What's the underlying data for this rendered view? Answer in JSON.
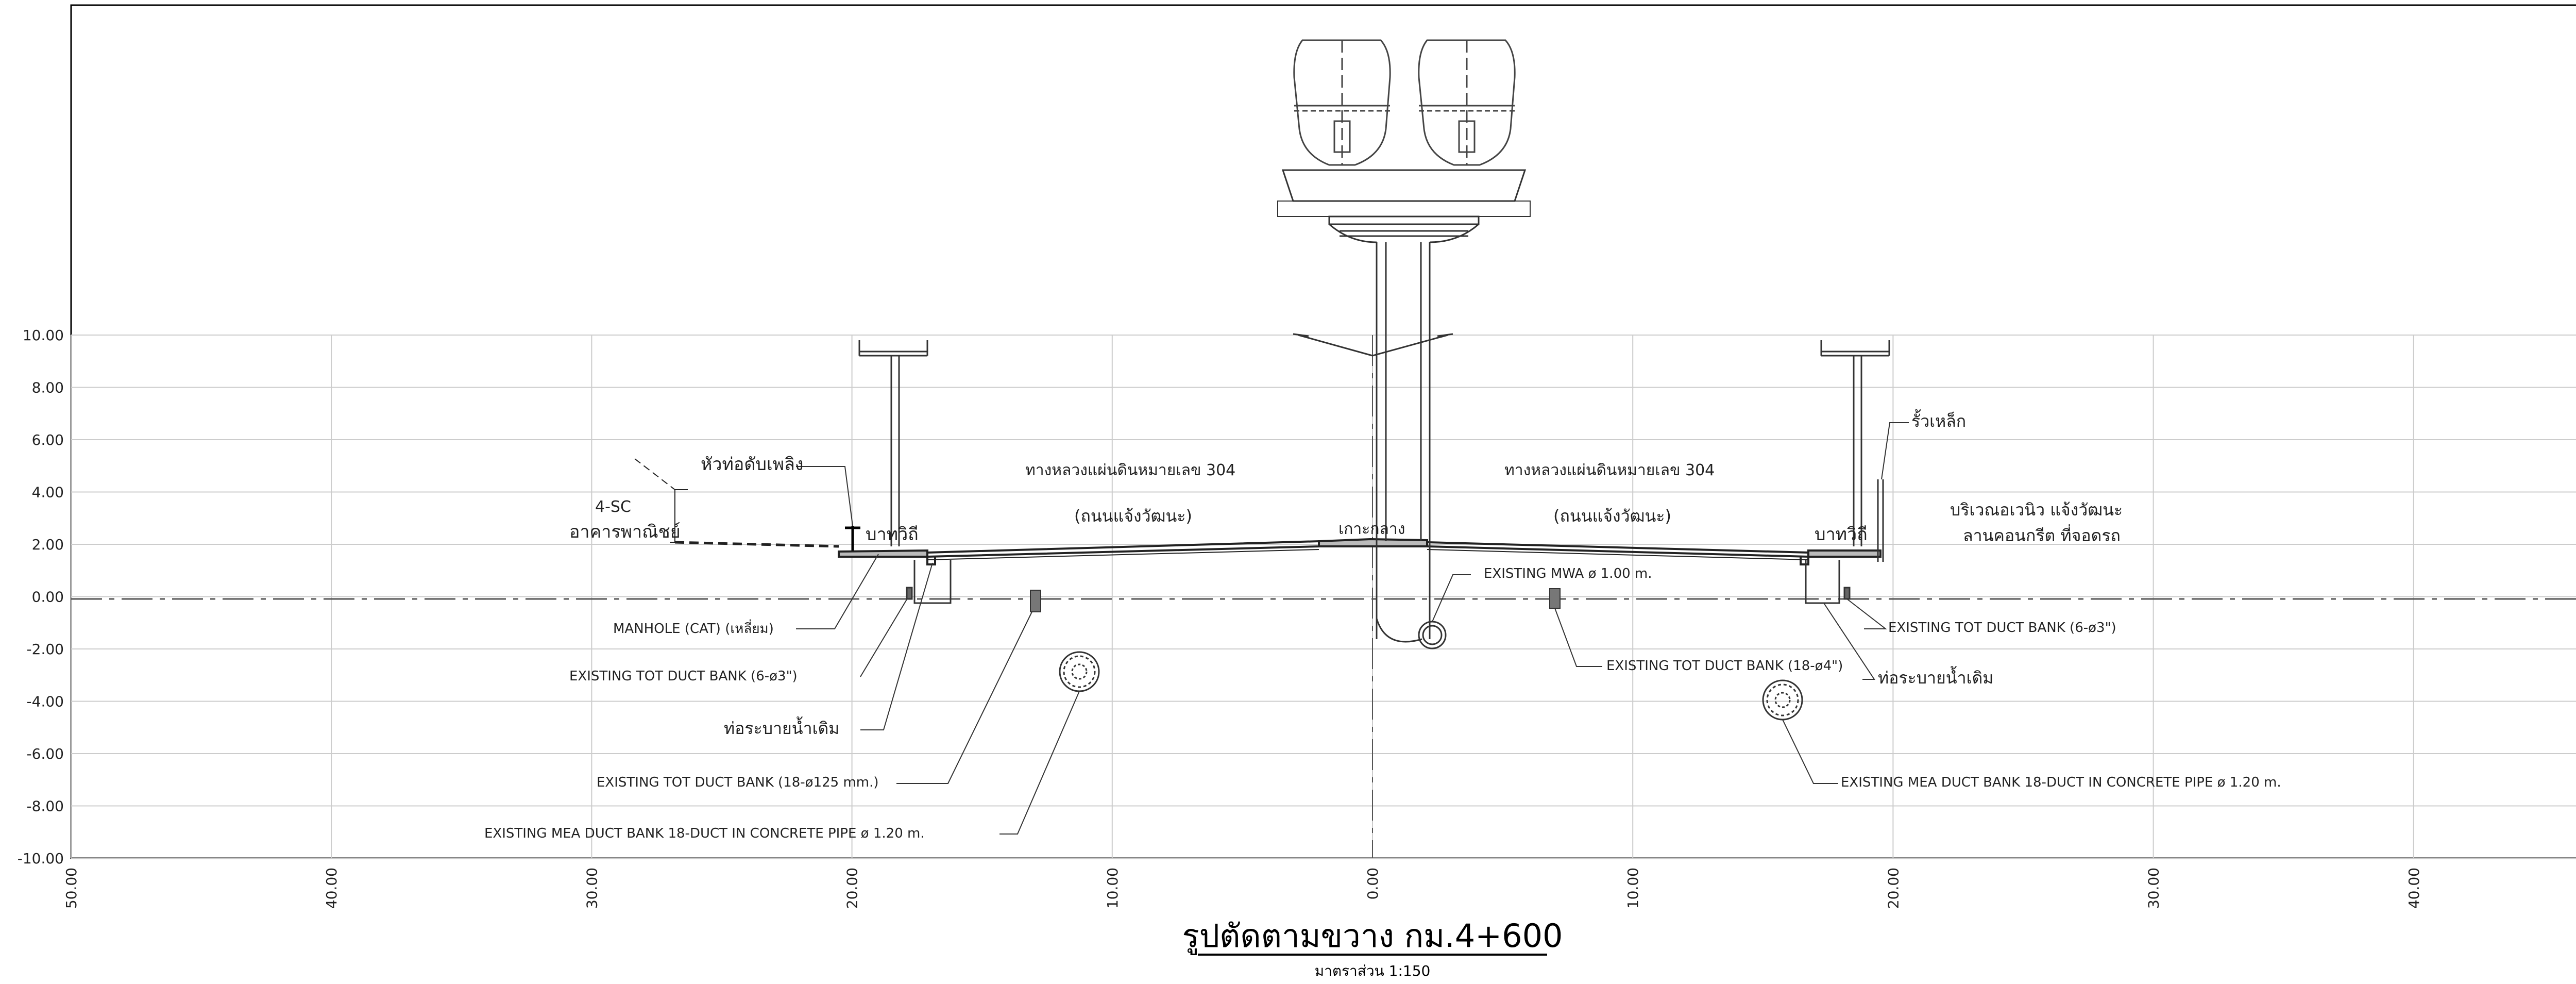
{
  "drawing": {
    "title": "รูปตัดตามขวาง กม.4+600",
    "scale_note": "มาตราส่วน 1:150"
  },
  "axes": {
    "y_ticks": [
      "10.00",
      "8.00",
      "6.00",
      "4.00",
      "2.00",
      "0.00",
      "-2.00",
      "-4.00",
      "-6.00",
      "-8.00",
      "-10.00"
    ],
    "x_ticks": [
      "50.00",
      "40.00",
      "30.00",
      "20.00",
      "10.00",
      "0.00",
      "10.00",
      "20.00",
      "30.00",
      "40.00",
      "50.00"
    ]
  },
  "labels": {
    "hydrant": "หัวท่อดับเพลิง",
    "building_code": "4-SC",
    "building": "อาคารพาณิชย์",
    "sidewalk_left": "บาทวิถี",
    "sidewalk_right": "บาทวิถี",
    "road_left_1": "ทางหลวงแผ่นดินหมายเลข 304",
    "road_left_2": "(ถนนแจ้งวัฒนะ)",
    "road_right_1": "ทางหลวงแผ่นดินหมายเลข 304",
    "road_right_2": "(ถนนแจ้งวัฒนะ)",
    "median": "เกาะกลาง",
    "fence": "รั้วเหล็ก",
    "area_1": "บริเวณอเวนิว แจ้งวัฒนะ",
    "area_2": "ลานคอนกรีต ที่จอดรถ",
    "manhole": "MANHOLE (CAT) (เหลี่ยม)",
    "tot_left_6": "EXISTING TOT DUCT BANK (6-ø3\")",
    "drain_left": "ท่อระบายน้ำเดิม",
    "tot_left_18": "EXISTING TOT DUCT BANK (18-ø125 mm.)",
    "mea_left": "EXISTING MEA DUCT BANK 18-DUCT IN CONCRETE PIPE ø 1.20 m.",
    "mwa": "EXISTING MWA ø 1.00 m.",
    "tot_mid_18": "EXISTING TOT DUCT BANK (18-ø4\")",
    "tot_right_6": "EXISTING TOT DUCT BANK (6-ø3\")",
    "drain_right": "ท่อระบายน้ำเดิม",
    "mea_right": "EXISTING MEA DUCT BANK 18-DUCT IN CONCRETE PIPE ø 1.20 m."
  },
  "colors": {
    "ink": "#222222",
    "grid": "#cccccc",
    "axis": "#000000"
  },
  "icons": {
    "pipe_section": "duct-bank-circle-icon",
    "luminaire": "street-light-icon"
  }
}
